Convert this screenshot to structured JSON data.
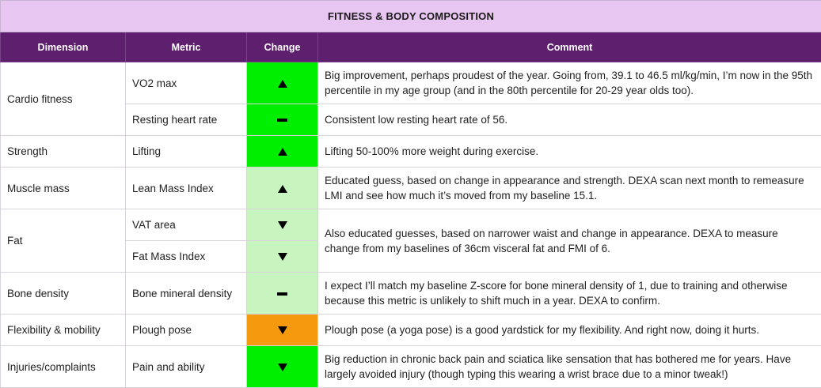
{
  "title": "FITNESS & BODY COMPOSITION",
  "headers": {
    "dimension": "Dimension",
    "metric": "Metric",
    "change": "Change",
    "comment": "Comment"
  },
  "rows": [
    {
      "dimension": "Cardio fitness",
      "metric": "VO2 max",
      "change": "up",
      "change_color": "#00ee00",
      "comment": "Big improvement, perhaps proudest of the year. Going from, 39.1 to 46.5 ml/kg/min, I’m now in the 95th percentile in my age group (and in the 80th percentile for 20-29 year olds too)."
    },
    {
      "dimension": "Cardio fitness",
      "metric": "Resting heart rate",
      "change": "flat",
      "change_color": "#00ee00",
      "comment": "Consistent low resting heart rate of 56."
    },
    {
      "dimension": "Strength",
      "metric": "Lifting",
      "change": "up",
      "change_color": "#00ee00",
      "comment": "Lifting 50-100% more weight during exercise."
    },
    {
      "dimension": "Muscle mass",
      "metric": "Lean Mass Index",
      "change": "up",
      "change_color": "#c8f4c0",
      "comment": "Educated guess, based on change in appearance and strength. DEXA scan next month to remeasure LMI and see how much it’s moved from my baseline 15.1."
    },
    {
      "dimension": "Fat",
      "metric": "VAT area",
      "change": "down",
      "change_color": "#c8f4c0",
      "comment": "Also educated guesses, based on narrower waist and change in appearance. DEXA to measure change from my baselines of 36cm visceral fat and FMI of 6."
    },
    {
      "dimension": "Fat",
      "metric": "Fat Mass Index",
      "change": "down",
      "change_color": "#c8f4c0",
      "comment": "Also educated guesses, based on narrower waist and change in appearance. DEXA to measure change from my baselines of 36cm visceral fat and FMI of 6."
    },
    {
      "dimension": "Bone density",
      "metric": "Bone mineral density",
      "change": "flat",
      "change_color": "#c8f4c0",
      "comment": "I expect I’ll match my baseline Z-score for bone mineral density of 1, due to training and otherwise because this metric is unlikely to shift much in a year. DEXA to confirm."
    },
    {
      "dimension": "Flexibility & mobility",
      "metric": "Plough pose",
      "change": "down",
      "change_color": "#f59a0e",
      "comment": "Plough pose (a yoga pose) is a good yardstick for my flexibility. And right now, doing it hurts."
    },
    {
      "dimension": "Injuries/complaints",
      "metric": "Pain and ability",
      "change": "down",
      "change_color": "#00ee00",
      "comment": "Big reduction in chronic back pain and sciatica like sensation that has bothered me for years. Have largely avoided injury (though typing this wearing a wrist brace due to a minor tweak!)"
    }
  ]
}
